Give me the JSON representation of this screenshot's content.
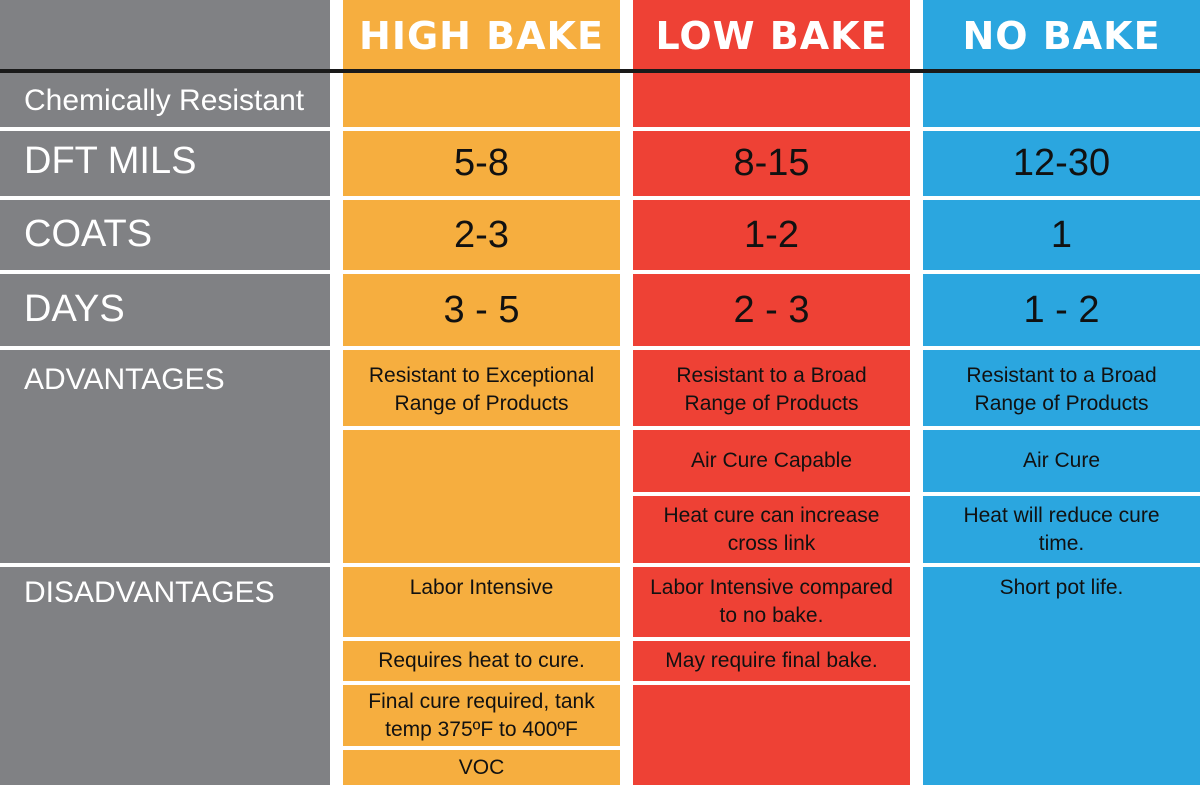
{
  "headers": {
    "high": "HIGH BAKE",
    "low": "LOW BAKE",
    "no": "NO BAKE"
  },
  "rows": {
    "chemically_resistant": "Chemically Resistant",
    "dft_mils": "DFT MILS",
    "coats": "COATS",
    "days": "DAYS",
    "advantages": "ADVANTAGES",
    "disadvantages": "DISADVANTAGES"
  },
  "high_bake": {
    "dft": "5-8",
    "coats": "2-3",
    "days": "3 - 5",
    "adv1": "Resistant to Exceptional Range of Products",
    "dis1": "Labor Intensive",
    "dis2": "Requires heat to cure.",
    "dis3": "Final cure required, tank temp 375ºF to 400ºF",
    "dis4": "VOC"
  },
  "low_bake": {
    "dft": "8-15",
    "coats": "1-2",
    "days": "2 - 3",
    "adv1": "Resistant to a Broad Range of Products",
    "adv2": "Air Cure Capable",
    "adv3": "Heat cure can increase cross link",
    "dis1": "Labor Intensive compared to no bake.",
    "dis2": "May require final bake."
  },
  "no_bake": {
    "dft": "12-30",
    "coats": "1",
    "days": "1 - 2",
    "adv1": "Resistant to a Broad Range of Products",
    "adv2": "Air Cure",
    "adv3": "Heat will reduce cure time.",
    "dis1": "Short pot life."
  },
  "colors": {
    "label_gray": "#808184",
    "high_orange": "#F6AE3F",
    "low_red": "#EE4135",
    "no_blue": "#2BA6DF"
  }
}
